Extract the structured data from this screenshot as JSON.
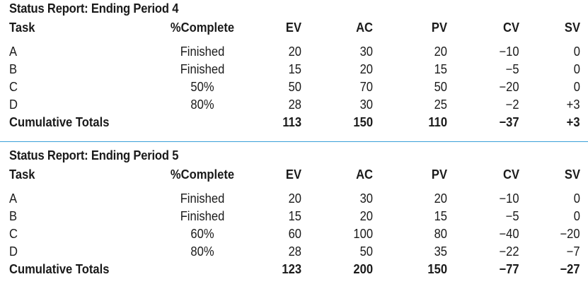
{
  "colors": {
    "divider": "#3aa0d8",
    "text": "#1a1a1a"
  },
  "reports": [
    {
      "title": "Status Report: Ending Period 4",
      "headers": {
        "task": "Task",
        "pct": "%Complete",
        "ev": "EV",
        "ac": "AC",
        "pv": "PV",
        "cv": "CV",
        "sv": "SV"
      },
      "rows": [
        {
          "task": "A",
          "pct": "Finished",
          "ev": "20",
          "ac": "30",
          "pv": "20",
          "cv": "−10",
          "sv": "0"
        },
        {
          "task": "B",
          "pct": "Finished",
          "ev": "15",
          "ac": "20",
          "pv": "15",
          "cv": "−5",
          "sv": "0"
        },
        {
          "task": "C",
          "pct": "50%",
          "ev": "50",
          "ac": "70",
          "pv": "50",
          "cv": "−20",
          "sv": "0"
        },
        {
          "task": "D",
          "pct": "80%",
          "ev": "28",
          "ac": "30",
          "pv": "25",
          "cv": "−2",
          "sv": "+3"
        }
      ],
      "totals": {
        "label": "Cumulative Totals",
        "ev": "113",
        "ac": "150",
        "pv": "110",
        "cv": "−37",
        "sv": "+3"
      }
    },
    {
      "title": "Status Report: Ending Period 5",
      "headers": {
        "task": "Task",
        "pct": "%Complete",
        "ev": "EV",
        "ac": "AC",
        "pv": "PV",
        "cv": "CV",
        "sv": "SV"
      },
      "rows": [
        {
          "task": "A",
          "pct": "Finished",
          "ev": "20",
          "ac": "30",
          "pv": "20",
          "cv": "−10",
          "sv": "0"
        },
        {
          "task": "B",
          "pct": "Finished",
          "ev": "15",
          "ac": "20",
          "pv": "15",
          "cv": "−5",
          "sv": "0"
        },
        {
          "task": "C",
          "pct": "60%",
          "ev": "60",
          "ac": "100",
          "pv": "80",
          "cv": "−40",
          "sv": "−20"
        },
        {
          "task": "D",
          "pct": "80%",
          "ev": "28",
          "ac": "50",
          "pv": "35",
          "cv": "−22",
          "sv": "−7"
        }
      ],
      "totals": {
        "label": "Cumulative Totals",
        "ev": "123",
        "ac": "200",
        "pv": "150",
        "cv": "−77",
        "sv": "−27"
      }
    }
  ]
}
